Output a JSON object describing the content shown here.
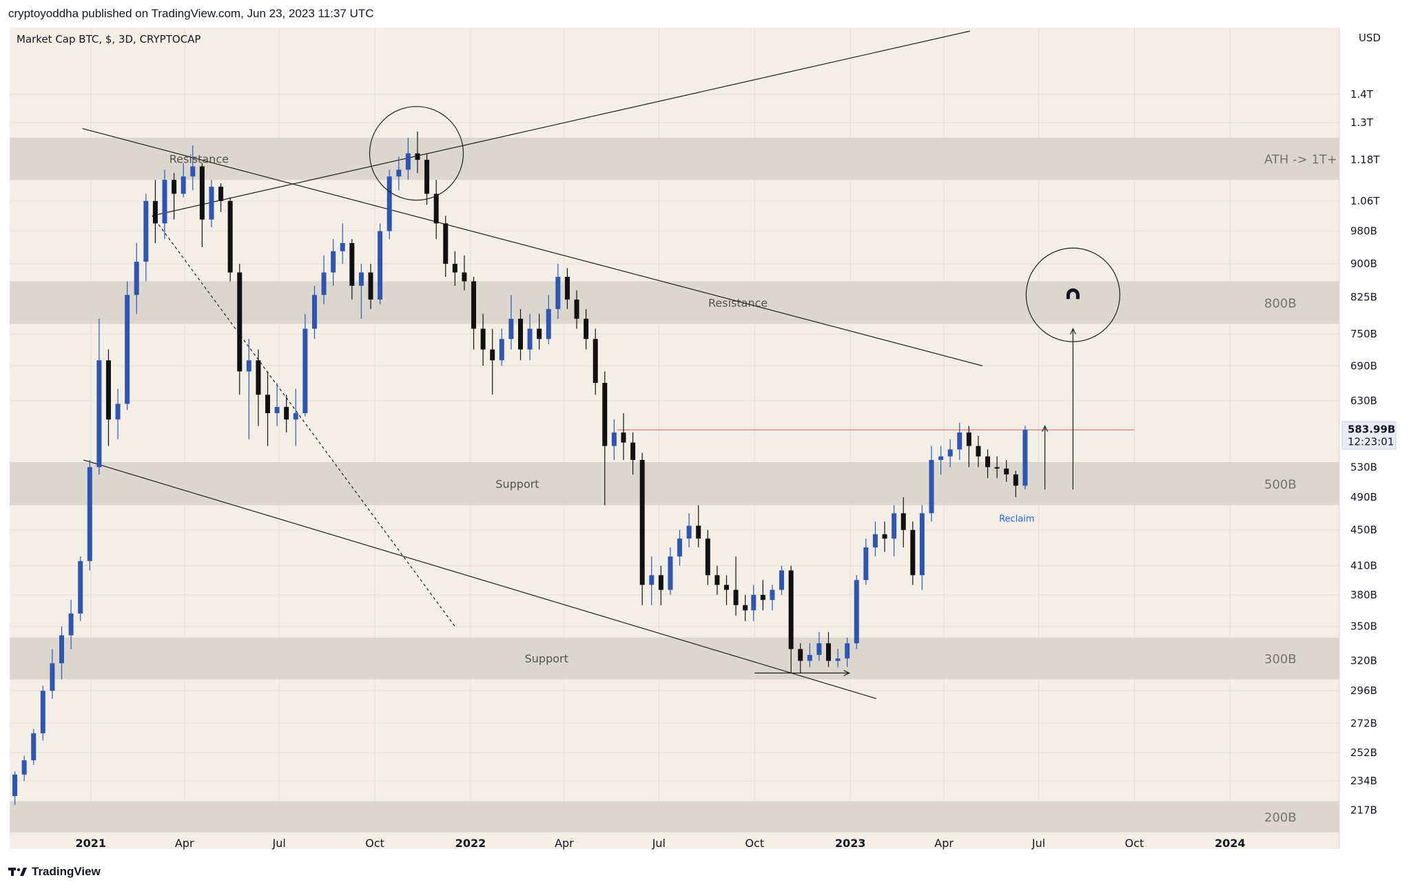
{
  "header": {
    "published_line": "cryptoyoddha published on TradingView.com, Jun 23, 2023 11:37 UTC"
  },
  "footer": {
    "brand": "TradingView"
  },
  "chart_data": {
    "type": "candlestick",
    "title": "Market Cap BTC, $, 3D, CRYPTOCAP",
    "currency": "USD",
    "y_scale": "log",
    "ylim": [
      205000000000.0,
      1550000000000.0
    ],
    "xlim": [
      "2020-10-15",
      "2024-04-15"
    ],
    "grid": true,
    "last_price": {
      "label": "583.99B",
      "countdown": "12:23:01",
      "value": 583990000000.0
    },
    "y_ticks": [
      {
        "v": 1400000000000.0,
        "label": "1.4T"
      },
      {
        "v": 1300000000000.0,
        "label": "1.3T"
      },
      {
        "v": 1180000000000.0,
        "label": "1.18T"
      },
      {
        "v": 1060000000000.0,
        "label": "1.06T"
      },
      {
        "v": 980000000000.0,
        "label": "980B"
      },
      {
        "v": 900000000000.0,
        "label": "900B"
      },
      {
        "v": 825000000000.0,
        "label": "825B"
      },
      {
        "v": 750000000000.0,
        "label": "750B"
      },
      {
        "v": 690000000000.0,
        "label": "690B"
      },
      {
        "v": 630000000000.0,
        "label": "630B"
      },
      {
        "v": 530000000000.0,
        "label": "530B"
      },
      {
        "v": 490000000000.0,
        "label": "490B"
      },
      {
        "v": 450000000000.0,
        "label": "450B"
      },
      {
        "v": 410000000000.0,
        "label": "410B"
      },
      {
        "v": 380000000000.0,
        "label": "380B"
      },
      {
        "v": 350000000000.0,
        "label": "350B"
      },
      {
        "v": 320000000000.0,
        "label": "320B"
      },
      {
        "v": 296000000000.0,
        "label": "296B"
      },
      {
        "v": 272000000000.0,
        "label": "272B"
      },
      {
        "v": 252000000000.0,
        "label": "252B"
      },
      {
        "v": 234000000000.0,
        "label": "234B"
      },
      {
        "v": 217000000000.0,
        "label": "217B"
      }
    ],
    "x_ticks": [
      {
        "d": "2021-01-01",
        "label": "2021",
        "bold": true
      },
      {
        "d": "2021-04-01",
        "label": "Apr",
        "bold": false
      },
      {
        "d": "2021-07-01",
        "label": "Jul",
        "bold": false
      },
      {
        "d": "2021-10-01",
        "label": "Oct",
        "bold": false
      },
      {
        "d": "2022-01-01",
        "label": "2022",
        "bold": true
      },
      {
        "d": "2022-04-01",
        "label": "Apr",
        "bold": false
      },
      {
        "d": "2022-07-01",
        "label": "Jul",
        "bold": false
      },
      {
        "d": "2022-10-01",
        "label": "Oct",
        "bold": false
      },
      {
        "d": "2023-01-01",
        "label": "2023",
        "bold": true
      },
      {
        "d": "2023-04-01",
        "label": "Apr",
        "bold": false
      },
      {
        "d": "2023-07-01",
        "label": "Jul",
        "bold": false
      },
      {
        "d": "2023-10-01",
        "label": "Oct",
        "bold": false
      },
      {
        "d": "2024-01-01",
        "label": "2024",
        "bold": true
      }
    ],
    "zones": [
      {
        "low": 1120000000000.0,
        "high": 1250000000000.0,
        "label": "Resistance",
        "label_at": "2021-04-15",
        "side_label": "ATH -> 1T+"
      },
      {
        "low": 770000000000.0,
        "high": 860000000000.0,
        "label": "Resistance",
        "label_at": "2022-09-15",
        "side_label": "800B"
      },
      {
        "low": 480000000000.0,
        "high": 537000000000.0,
        "label": "Support",
        "label_at": "2022-02-15",
        "side_label": "500B"
      },
      {
        "low": 305000000000.0,
        "high": 340000000000.0,
        "label": "Support",
        "label_at": "2022-03-15",
        "side_label": "300B"
      },
      {
        "low": 205000000000.0,
        "high": 222000000000.0,
        "label": "",
        "label_at": "",
        "side_label": "200B"
      }
    ],
    "trendlines": [
      {
        "from": [
          "2021-03-01",
          1020000000000.0
        ],
        "to": [
          "2021-12-17",
          350000000000.0
        ],
        "dashed": true
      },
      {
        "from": [
          "2021-03-01",
          1020000000000.0
        ],
        "to": [
          "2023-04-26",
          1650000000000.0
        ],
        "dashed": false
      },
      {
        "from": [
          "2020-12-25",
          540000000000.0
        ],
        "to": [
          "2023-01-26",
          290000000000.0
        ],
        "dashed": false
      },
      {
        "from": [
          "2020-12-24",
          1280000000000.0
        ],
        "to": [
          "2023-05-08",
          690000000000.0
        ],
        "dashed": false
      }
    ],
    "horizontal_line": {
      "value": 584000000000.0,
      "from": "2022-05-22",
      "to": "2023-10-01",
      "color": "#e57373"
    },
    "annotations": [
      {
        "type": "circle",
        "center": [
          "2021-11-10",
          1200000000000.0
        ],
        "label": ""
      },
      {
        "type": "circle",
        "center": [
          "2023-08-03",
          830000000000.0
        ],
        "label": "magnet"
      },
      {
        "type": "arrow",
        "from": [
          "2023-07-07",
          500000000000.0
        ],
        "to": [
          "2023-07-07",
          590000000000.0
        ]
      },
      {
        "type": "arrow",
        "from": [
          "2023-08-03",
          500000000000.0
        ],
        "to": [
          "2023-08-03",
          760000000000.0
        ]
      },
      {
        "type": "arrow",
        "from": [
          "2022-10-01",
          310000000000.0
        ],
        "to": [
          "2022-12-31",
          310000000000.0
        ]
      },
      {
        "type": "text",
        "at": [
          "2023-06-10",
          460000000000.0
        ],
        "label": "Reclaim",
        "color": "#2962ff"
      }
    ],
    "candles": [
      [
        "2020-10-20",
        225,
        240,
        220,
        238
      ],
      [
        "2020-10-29",
        238,
        250,
        234,
        247
      ],
      [
        "2020-11-07",
        247,
        268,
        244,
        265
      ],
      [
        "2020-11-16",
        265,
        300,
        260,
        296
      ],
      [
        "2020-11-25",
        296,
        330,
        290,
        318
      ],
      [
        "2020-12-04",
        318,
        350,
        305,
        342
      ],
      [
        "2020-12-13",
        342,
        375,
        330,
        362
      ],
      [
        "2020-12-22",
        362,
        420,
        355,
        415
      ],
      [
        "2020-12-31",
        415,
        540,
        405,
        530
      ],
      [
        "2021-01-09",
        530,
        780,
        520,
        700
      ],
      [
        "2021-01-18",
        700,
        720,
        560,
        600
      ],
      [
        "2021-01-27",
        600,
        650,
        570,
        625
      ],
      [
        "2021-02-05",
        625,
        860,
        615,
        830
      ],
      [
        "2021-02-14",
        830,
        950,
        790,
        905
      ],
      [
        "2021-02-23",
        905,
        1080,
        860,
        1060
      ],
      [
        "2021-03-04",
        1060,
        1120,
        950,
        1000
      ],
      [
        "2021-03-13",
        1000,
        1150,
        960,
        1120
      ],
      [
        "2021-03-22",
        1120,
        1140,
        1010,
        1080
      ],
      [
        "2021-03-31",
        1080,
        1170,
        1070,
        1130
      ],
      [
        "2021-04-09",
        1130,
        1225,
        1090,
        1160
      ],
      [
        "2021-04-18",
        1160,
        1170,
        940,
        1010
      ],
      [
        "2021-04-27",
        1010,
        1120,
        990,
        1100
      ],
      [
        "2021-05-06",
        1100,
        1110,
        1030,
        1060
      ],
      [
        "2021-05-15",
        1060,
        1070,
        860,
        880
      ],
      [
        "2021-05-24",
        880,
        900,
        640,
        680
      ],
      [
        "2021-06-02",
        680,
        740,
        570,
        700
      ],
      [
        "2021-06-11",
        700,
        720,
        590,
        640
      ],
      [
        "2021-06-20",
        640,
        680,
        560,
        610
      ],
      [
        "2021-06-29",
        610,
        660,
        590,
        620
      ],
      [
        "2021-07-08",
        620,
        640,
        580,
        600
      ],
      [
        "2021-07-17",
        600,
        650,
        560,
        610
      ],
      [
        "2021-07-26",
        610,
        790,
        605,
        760
      ],
      [
        "2021-08-04",
        760,
        850,
        740,
        830
      ],
      [
        "2021-08-13",
        830,
        920,
        810,
        880
      ],
      [
        "2021-08-22",
        880,
        960,
        850,
        930
      ],
      [
        "2021-08-31",
        930,
        1000,
        900,
        950
      ],
      [
        "2021-09-09",
        950,
        960,
        820,
        850
      ],
      [
        "2021-09-18",
        850,
        900,
        780,
        880
      ],
      [
        "2021-09-27",
        880,
        900,
        800,
        820
      ],
      [
        "2021-10-06",
        820,
        1000,
        810,
        980
      ],
      [
        "2021-10-15",
        980,
        1150,
        960,
        1130
      ],
      [
        "2021-10-24",
        1130,
        1190,
        1090,
        1150
      ],
      [
        "2021-11-02",
        1150,
        1250,
        1120,
        1200
      ],
      [
        "2021-11-11",
        1200,
        1270,
        1140,
        1180
      ],
      [
        "2021-11-20",
        1180,
        1200,
        1050,
        1080
      ],
      [
        "2021-11-29",
        1080,
        1120,
        960,
        1000
      ],
      [
        "2021-12-08",
        1000,
        1020,
        870,
        900
      ],
      [
        "2021-12-17",
        900,
        930,
        850,
        880
      ],
      [
        "2021-12-26",
        880,
        920,
        840,
        860
      ],
      [
        "2022-01-04",
        860,
        870,
        720,
        760
      ],
      [
        "2022-01-13",
        760,
        790,
        690,
        720
      ],
      [
        "2022-01-22",
        720,
        760,
        640,
        700
      ],
      [
        "2022-01-31",
        700,
        760,
        690,
        740
      ],
      [
        "2022-02-09",
        740,
        830,
        720,
        780
      ],
      [
        "2022-02-18",
        780,
        800,
        700,
        720
      ],
      [
        "2022-02-27",
        720,
        790,
        700,
        760
      ],
      [
        "2022-03-08",
        760,
        790,
        720,
        740
      ],
      [
        "2022-03-17",
        740,
        830,
        730,
        800
      ],
      [
        "2022-03-26",
        800,
        900,
        780,
        870
      ],
      [
        "2022-04-04",
        870,
        890,
        800,
        820
      ],
      [
        "2022-04-13",
        820,
        840,
        760,
        780
      ],
      [
        "2022-04-22",
        780,
        800,
        720,
        740
      ],
      [
        "2022-05-01",
        740,
        760,
        640,
        660
      ],
      [
        "2022-05-10",
        660,
        680,
        480,
        560
      ],
      [
        "2022-05-19",
        560,
        600,
        540,
        580
      ],
      [
        "2022-05-28",
        580,
        610,
        540,
        565
      ],
      [
        "2022-06-06",
        565,
        580,
        520,
        540
      ],
      [
        "2022-06-15",
        540,
        550,
        370,
        390
      ],
      [
        "2022-06-24",
        390,
        420,
        370,
        400
      ],
      [
        "2022-07-03",
        400,
        410,
        370,
        385
      ],
      [
        "2022-07-12",
        385,
        430,
        380,
        420
      ],
      [
        "2022-07-21",
        420,
        450,
        410,
        440
      ],
      [
        "2022-07-30",
        440,
        470,
        430,
        455
      ],
      [
        "2022-08-08",
        455,
        480,
        430,
        440
      ],
      [
        "2022-08-17",
        440,
        450,
        390,
        400
      ],
      [
        "2022-08-26",
        400,
        410,
        380,
        390
      ],
      [
        "2022-09-04",
        390,
        400,
        370,
        385
      ],
      [
        "2022-09-13",
        385,
        420,
        360,
        370
      ],
      [
        "2022-09-22",
        370,
        380,
        355,
        365
      ],
      [
        "2022-09-30",
        365,
        390,
        355,
        380
      ],
      [
        "2022-10-09",
        380,
        395,
        365,
        375
      ],
      [
        "2022-10-18",
        375,
        390,
        365,
        385
      ],
      [
        "2022-10-27",
        385,
        410,
        380,
        405
      ],
      [
        "2022-11-05",
        405,
        410,
        310,
        330
      ],
      [
        "2022-11-14",
        330,
        335,
        310,
        320
      ],
      [
        "2022-11-23",
        320,
        335,
        315,
        325
      ],
      [
        "2022-12-02",
        325,
        345,
        320,
        335
      ],
      [
        "2022-12-11",
        335,
        345,
        315,
        320
      ],
      [
        "2022-12-20",
        320,
        330,
        315,
        322
      ],
      [
        "2022-12-29",
        322,
        340,
        315,
        335
      ],
      [
        "2023-01-07",
        335,
        400,
        330,
        395
      ],
      [
        "2023-01-16",
        395,
        440,
        390,
        430
      ],
      [
        "2023-01-25",
        430,
        460,
        420,
        445
      ],
      [
        "2023-02-03",
        445,
        460,
        425,
        440
      ],
      [
        "2023-02-12",
        440,
        480,
        420,
        470
      ],
      [
        "2023-02-21",
        470,
        490,
        430,
        450
      ],
      [
        "2023-03-02",
        450,
        460,
        390,
        400
      ],
      [
        "2023-03-11",
        400,
        480,
        385,
        470
      ],
      [
        "2023-03-20",
        470,
        560,
        460,
        540
      ],
      [
        "2023-03-29",
        540,
        560,
        520,
        545
      ],
      [
        "2023-04-07",
        545,
        570,
        530,
        555
      ],
      [
        "2023-04-16",
        555,
        595,
        540,
        580
      ],
      [
        "2023-04-25",
        580,
        590,
        530,
        560
      ],
      [
        "2023-05-04",
        560,
        575,
        530,
        545
      ],
      [
        "2023-05-13",
        545,
        555,
        515,
        530
      ],
      [
        "2023-05-22",
        530,
        545,
        515,
        528
      ],
      [
        "2023-05-31",
        528,
        540,
        510,
        520
      ],
      [
        "2023-06-09",
        520,
        525,
        490,
        505
      ],
      [
        "2023-06-18",
        505,
        590,
        500,
        584
      ]
    ]
  }
}
